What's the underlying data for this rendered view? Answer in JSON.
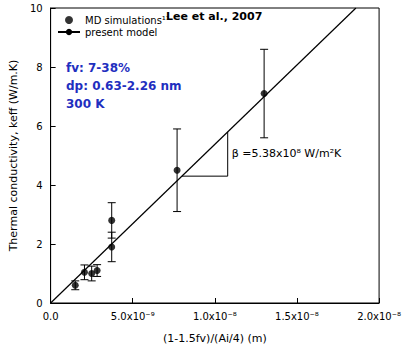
{
  "chart_data": {
    "type": "scatter",
    "xlabel": "(1-1.5fv)/(Ai/4) (m)",
    "ylabel": "Thermal conductivity, keff (W/m.K)",
    "series": [
      {
        "name": "MD simulations¹¹",
        "type": "scatter",
        "marker": "circle",
        "color": "#000000",
        "x": [
          1.5e-09,
          2.06e-09,
          2.5e-09,
          2.83e-09,
          3.72e-09,
          3.72e-09,
          7.7e-09,
          1.3e-08
        ],
        "values": [
          0.6,
          1.04,
          1.0,
          1.1,
          1.9,
          2.8,
          4.5,
          7.1
        ],
        "errors": [
          0.15,
          0.25,
          0.25,
          0.2,
          0.5,
          0.6,
          1.4,
          1.5
        ]
      },
      {
        "name": "present model",
        "type": "line",
        "line_style": "solid",
        "color": "#000000",
        "x": [
          0,
          1.859e-08
        ],
        "values": [
          0,
          10
        ]
      }
    ],
    "xlim": [
      0,
      2e-08
    ],
    "xticks": [
      {
        "value": 0,
        "label": "0.0"
      },
      {
        "value": 5e-09,
        "label": "5.0x10⁻⁹"
      },
      {
        "value": 1e-08,
        "label": "1.0x10⁻⁸"
      },
      {
        "value": 1.5e-08,
        "label": "1.5x10⁻⁸"
      },
      {
        "value": 2e-08,
        "label": "2.0x10⁻⁸"
      }
    ],
    "ylim": [
      0,
      10
    ],
    "yticks": [
      0,
      2,
      4,
      6,
      8,
      10
    ],
    "legend": "upper left",
    "grid": false,
    "annotations": [
      {
        "text": "Lee et al., 2007",
        "color": "#000000"
      },
      {
        "text": "fv: 7-38%",
        "color": "#1f2fbf"
      },
      {
        "text": "dp: 0.63-2.26 nm",
        "color": "#1f2fbf"
      },
      {
        "text": "300 K",
        "color": "#1f2fbf"
      },
      {
        "text": "β =5.38x10⁸ W/m²K",
        "color": "#000000"
      }
    ]
  }
}
